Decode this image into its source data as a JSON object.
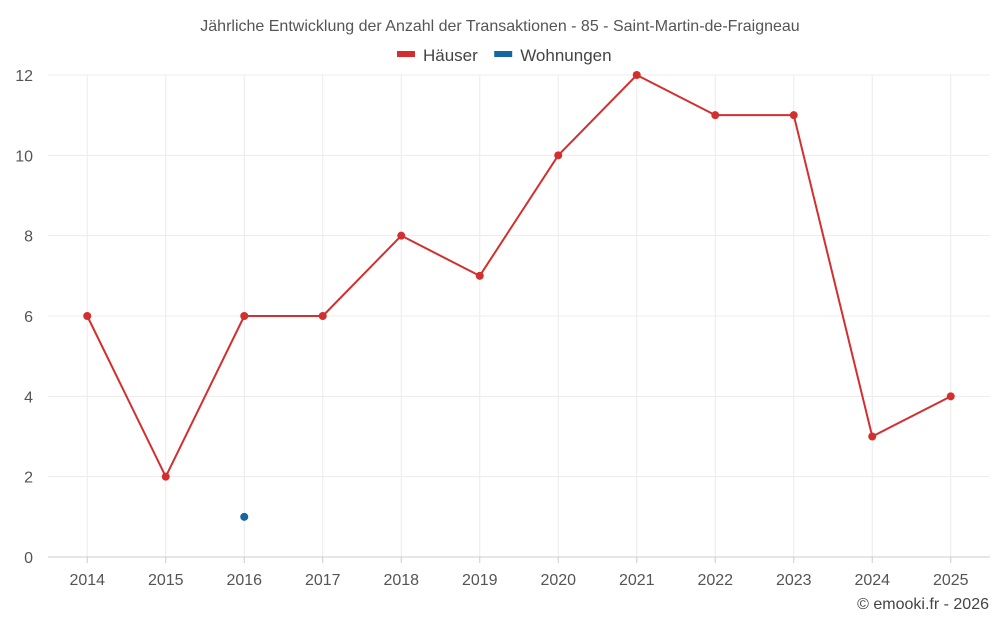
{
  "chart_data": {
    "type": "line",
    "title": "Jährliche Entwicklung der Anzahl der Transaktionen - 85 - Saint-Martin-de-Fraigneau",
    "categories": [
      "2014",
      "2015",
      "2016",
      "2017",
      "2018",
      "2019",
      "2020",
      "2021",
      "2022",
      "2023",
      "2024",
      "2025"
    ],
    "series": [
      {
        "name": "Häuser",
        "color": "#d32f2f",
        "values": [
          6,
          2,
          6,
          6,
          8,
          7,
          10,
          12,
          11,
          11,
          3,
          4
        ]
      },
      {
        "name": "Wohnungen",
        "color": "#1565a0",
        "values": [
          null,
          null,
          1,
          null,
          null,
          null,
          null,
          null,
          null,
          null,
          null,
          null
        ]
      }
    ],
    "ylim": [
      0,
      12
    ],
    "yticks": [
      "0",
      "2",
      "4",
      "6",
      "8",
      "10",
      "12"
    ],
    "xlabel": "",
    "ylabel": "",
    "grid": true,
    "legend_position": "top-center",
    "credit": "© emooki.fr - 2026"
  }
}
